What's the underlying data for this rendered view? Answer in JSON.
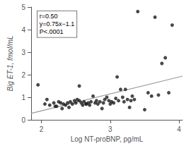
{
  "chart_data": {
    "type": "scatter",
    "title": "",
    "xlabel": "Log NT-proBNP, pg/mL",
    "ylabel": "Big ET-1, fmol/mL",
    "xlim": [
      1.85,
      4.05
    ],
    "ylim": [
      0,
      5.0
    ],
    "xticks": [
      2,
      3,
      4
    ],
    "yticks": [
      0,
      1,
      2,
      3,
      4,
      5
    ],
    "grid": false,
    "annotations": [
      "r=0.50",
      "y=0.75x−1.1",
      "P<.0001"
    ],
    "series": [
      {
        "type": "scatter",
        "color": "#1a1a1a",
        "marker": "circle",
        "x": [
          1.95,
          2.05,
          2.08,
          2.12,
          2.18,
          2.2,
          2.22,
          2.25,
          2.28,
          2.3,
          2.32,
          2.35,
          2.38,
          2.4,
          2.42,
          2.45,
          2.48,
          2.5,
          2.52,
          2.55,
          2.58,
          2.6,
          2.62,
          2.65,
          2.68,
          2.7,
          2.72,
          2.75,
          2.78,
          2.8,
          2.82,
          2.85,
          2.88,
          2.9,
          2.92,
          2.95,
          2.98,
          3.0,
          3.02,
          3.05,
          3.08,
          3.1,
          3.12,
          3.15,
          3.18,
          3.2,
          3.22,
          3.25,
          3.28,
          3.3,
          3.32,
          3.35,
          3.4,
          3.5,
          3.55,
          3.6,
          3.65,
          3.7,
          3.75,
          3.8,
          3.85,
          3.9,
          2.55,
          2.65
        ],
        "values": [
          1.55,
          0.7,
          0.9,
          0.65,
          0.75,
          0.6,
          0.6,
          0.8,
          0.75,
          0.5,
          0.7,
          0.65,
          0.75,
          0.55,
          0.8,
          0.7,
          0.85,
          0.75,
          0.9,
          0.85,
          0.75,
          0.65,
          0.8,
          0.7,
          0.75,
          0.65,
          0.8,
          1.05,
          0.75,
          0.85,
          0.7,
          0.8,
          0.5,
          0.75,
          0.9,
          1.0,
          0.85,
          0.7,
          0.8,
          0.75,
          0.95,
          1.9,
          0.85,
          1.35,
          1.0,
          0.8,
          1.35,
          0.9,
          0.55,
          0.85,
          1.05,
          0.9,
          4.8,
          0.45,
          1.2,
          1.05,
          4.55,
          1.1,
          2.5,
          2.75,
          1.2,
          4.2,
          1.5,
          0.7
        ]
      },
      {
        "type": "line",
        "color": "#999999",
        "line_style": "solid",
        "x": [
          1.85,
          4.05
        ],
        "values": [
          0.2875,
          1.9375
        ]
      }
    ]
  }
}
